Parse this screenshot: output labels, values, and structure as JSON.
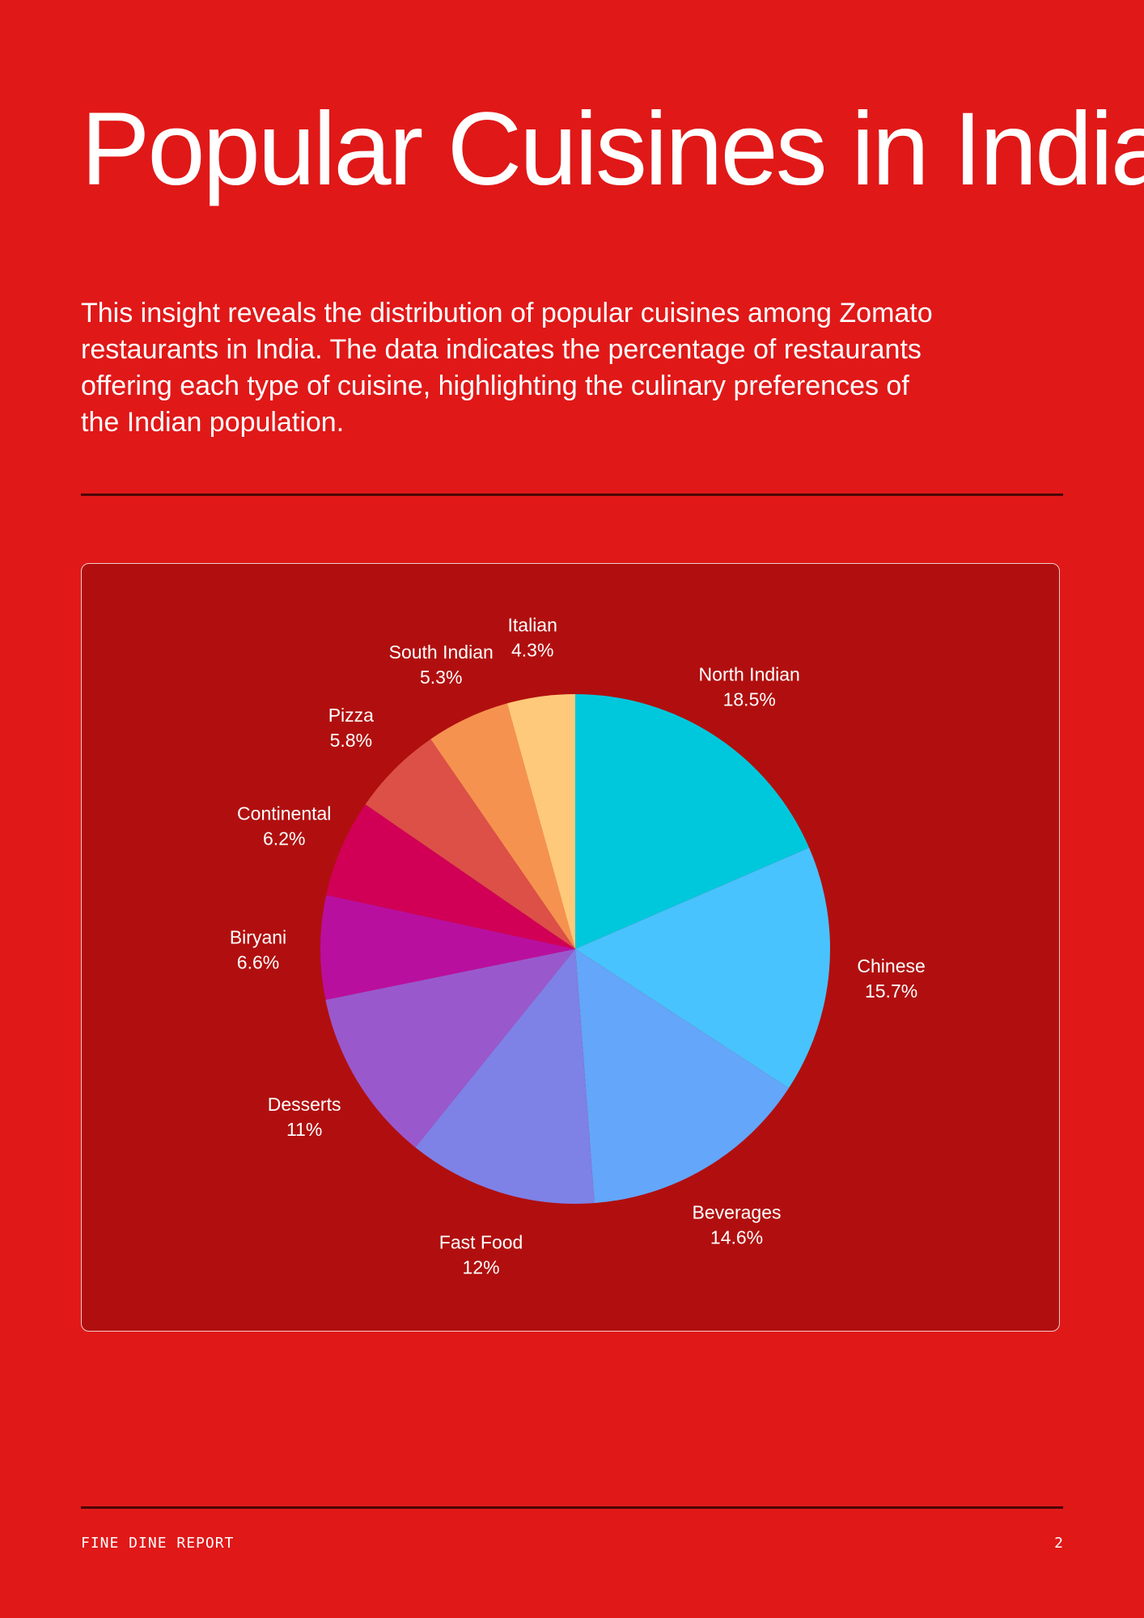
{
  "page": {
    "title": "Popular Cuisines in India",
    "intro": "This insight reveals the distribution of popular cuisines among Zomato restaurants in India. The data indicates the percentage of restaurants offering each type of cuisine, highlighting the culinary preferences of the Indian population."
  },
  "footer": {
    "label": "FINE DINE REPORT",
    "page_number": "2"
  },
  "colors": {
    "background": "#e01818",
    "panel": "#b10f0f",
    "rule": "#4a0606"
  },
  "chart_data": {
    "type": "pie",
    "title": "",
    "slices": [
      {
        "label": "North Indian",
        "value": 18.5,
        "value_label": "18.5%",
        "color": "#00c8dc"
      },
      {
        "label": "Chinese",
        "value": 15.7,
        "value_label": "15.7%",
        "color": "#48c3fd"
      },
      {
        "label": "Beverages",
        "value": 14.6,
        "value_label": "14.6%",
        "color": "#64a6f9"
      },
      {
        "label": "Fast Food",
        "value": 12,
        "value_label": "12%",
        "color": "#7e81e6"
      },
      {
        "label": "Desserts",
        "value": 11,
        "value_label": "11%",
        "color": "#9a58cd"
      },
      {
        "label": "Biryani",
        "value": 6.6,
        "value_label": "6.6%",
        "color": "#b90f9f"
      },
      {
        "label": "Continental",
        "value": 6.2,
        "value_label": "6.2%",
        "color": "#d10056"
      },
      {
        "label": "Pizza",
        "value": 5.8,
        "value_label": "5.8%",
        "color": "#dc5048"
      },
      {
        "label": "South Indian",
        "value": 5.3,
        "value_label": "5.3%",
        "color": "#f69250"
      },
      {
        "label": "Italian",
        "value": 4.3,
        "value_label": "4.3%",
        "color": "#fec97a"
      }
    ],
    "start_angle": "12 o'clock",
    "direction": "clockwise",
    "legend": "none"
  }
}
